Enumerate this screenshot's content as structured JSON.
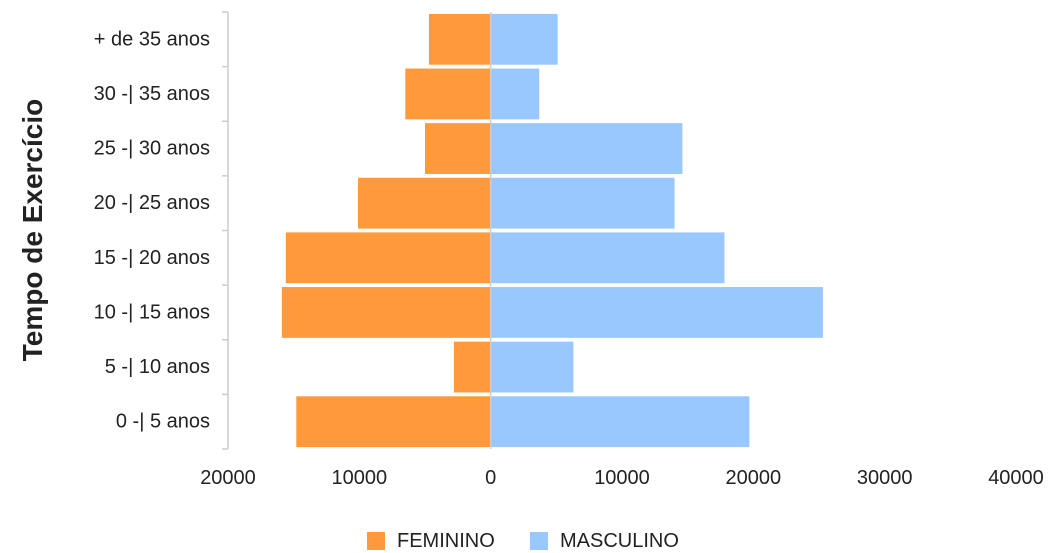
{
  "chart_data": {
    "type": "bar",
    "orientation": "horizontal",
    "layout": "population-pyramid",
    "ylabel": "Tempo de Exercício",
    "xlabel": "",
    "categories": [
      "+ de 35 anos",
      "30 -| 35 anos",
      "25 -| 30 anos",
      "20 -| 25 anos",
      "15 -| 20 anos",
      "10 -| 15 anos",
      "5 -| 10 anos",
      "0 -| 5 anos"
    ],
    "series": [
      {
        "name": "FEMININO",
        "color": "#FF9A3C",
        "direction": "left",
        "values": [
          4700,
          6500,
          5000,
          10100,
          15600,
          15900,
          2800,
          14800
        ]
      },
      {
        "name": "MASCULINO",
        "color": "#99C7FF",
        "direction": "right",
        "values": [
          5100,
          3700,
          14600,
          14000,
          17800,
          25300,
          6300,
          19700
        ]
      }
    ],
    "xlim": [
      -20000,
      40000
    ],
    "xticks": [
      -20000,
      -10000,
      0,
      10000,
      20000,
      30000,
      40000
    ],
    "xtick_labels": [
      "20000",
      "10000",
      "0",
      "10000",
      "20000",
      "30000",
      "40000"
    ],
    "grid": false,
    "legend_position": "bottom"
  }
}
